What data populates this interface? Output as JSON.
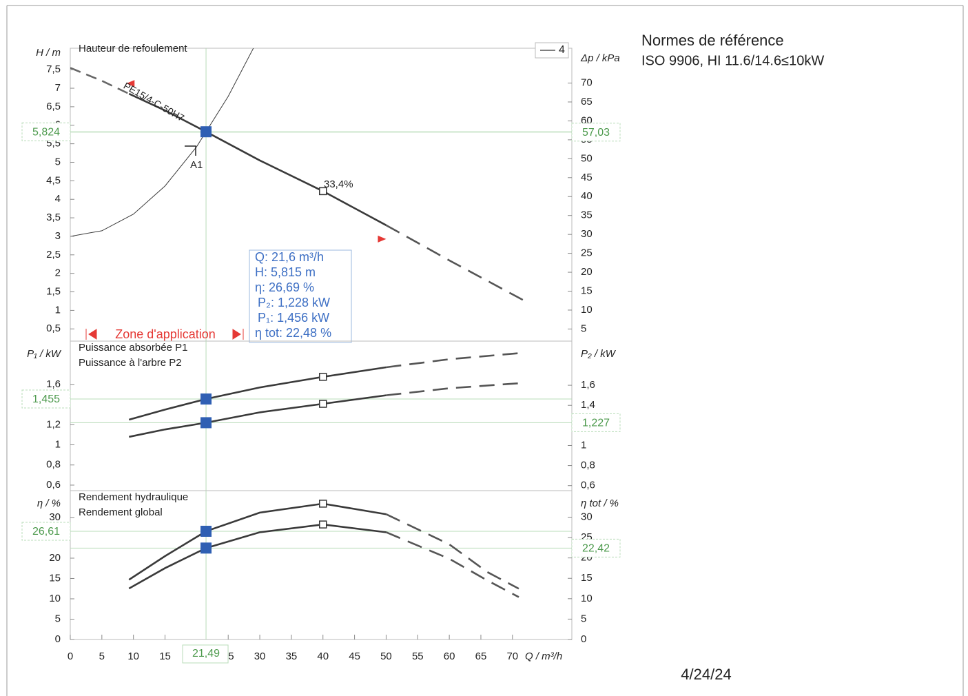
{
  "header": {
    "title": "Normes de référence",
    "subtitle": "ISO 9906, HI 11.6/14.6≤10kW"
  },
  "date": "4/24/24",
  "chart_data": [
    {
      "type": "line",
      "title": "Hauteur de refoulement",
      "ylabel": "H / m",
      "y2label": "Δp / kPa",
      "xlim": [
        0,
        79.4
      ],
      "ylim": [
        0.17,
        8.08
      ],
      "y2lim": [
        1.8,
        79.2
      ],
      "yticks": [
        {
          "value": 0.5,
          "label": "0,5"
        },
        1,
        {
          "value": 1.5,
          "label": "1,5"
        },
        2,
        {
          "value": 2.5,
          "label": "2,5"
        },
        3,
        {
          "value": 3.5,
          "label": "3,5"
        },
        4,
        {
          "value": 4.5,
          "label": "4,5"
        },
        5,
        {
          "value": 5.5,
          "label": "5,5"
        },
        6,
        {
          "value": 6.5,
          "label": "6,5"
        },
        7,
        {
          "value": 7.5,
          "label": "7,5"
        }
      ],
      "y2ticks": [
        5,
        10,
        15,
        20,
        25,
        30,
        35,
        40,
        45,
        50,
        55,
        60,
        65,
        70
      ],
      "application_zone": [
        9.3,
        50
      ],
      "zone_label": "Zone d'application",
      "bep_x": 40,
      "bep_label": "33,4%",
      "annotation": "A1",
      "legend_label": "4",
      "series": [
        {
          "name": "PE15/4-C-50H7",
          "color": "#3a3a3a",
          "x": [
            0,
            5,
            9.3,
            15,
            21.49,
            30,
            40,
            50,
            60,
            72
          ],
          "values": [
            7.55,
            7.2,
            6.85,
            6.4,
            5.824,
            5.05,
            4.22,
            3.3,
            2.35,
            1.25
          ]
        },
        {
          "color": "#3a3a3a",
          "width": 1,
          "x": [
            0,
            5,
            10,
            15,
            20,
            25,
            29.2
          ],
          "values": [
            3,
            3.15,
            3.6,
            4.36,
            5.42,
            6.78,
            8.15
          ]
        }
      ],
      "readouts": [
        {
          "axis": "y",
          "value": 5.824,
          "label": "5,824",
          "marker": true
        },
        {
          "axis": "y2",
          "value": 57.03,
          "label": "57,03"
        }
      ],
      "info_box": [
        "Q: 21,6 m³/h",
        "H: 5,815 m",
        "η: 26,69 %",
        "P₂: 1,228 kW",
        "P₁: 1,456 kW",
        "η tot: 22,48 %"
      ]
    },
    {
      "type": "line",
      "ylabel": "P₁ / kW",
      "y2label": "P₂ / kW",
      "xlim": [
        0,
        79.4
      ],
      "ylim": [
        0.545,
        2.03
      ],
      "y2lim": [
        0.55,
        2.04
      ],
      "yticks": [
        {
          "value": 0.6,
          "label": "0,6"
        },
        {
          "value": 0.8,
          "label": "0,8"
        },
        1,
        {
          "value": 1.2,
          "label": "1,2"
        },
        {
          "value": 1.6,
          "label": "1,6"
        }
      ],
      "y2ticks": [
        {
          "value": 0.6,
          "label": "0,6"
        },
        {
          "value": 0.8,
          "label": "0,8"
        },
        1,
        {
          "value": 1.4,
          "label": "1,4"
        },
        {
          "value": 1.6,
          "label": "1,6"
        }
      ],
      "series": [
        {
          "name": "Puissance absorbée P1",
          "color": "#3a3a3a",
          "x": [
            9.3,
            15,
            21.49,
            30,
            40,
            50,
            60,
            71
          ],
          "values": [
            1.25,
            1.35,
            1.455,
            1.57,
            1.675,
            1.77,
            1.85,
            1.91
          ]
        },
        {
          "name": "Puissance à l'arbre P2",
          "color": "#3a3a3a",
          "axis": "y2",
          "x": [
            9.3,
            15,
            21.49,
            30,
            40,
            50,
            60,
            71
          ],
          "values": [
            1.086,
            1.16,
            1.227,
            1.33,
            1.415,
            1.5,
            1.57,
            1.62
          ]
        }
      ],
      "readouts": [
        {
          "axis": "y",
          "value": 1.455,
          "label": "1,455",
          "marker": true
        },
        {
          "axis": "y2",
          "value": 1.227,
          "label": "1,227",
          "marker": true
        }
      ]
    },
    {
      "type": "line",
      "ylabel": "η / %",
      "y2label": "η tot / %",
      "xlabel": "Q / m³/h",
      "xlim": [
        0,
        79.4
      ],
      "ylim": [
        0,
        36.6
      ],
      "y2lim": [
        0,
        36.5
      ],
      "yticks": [
        0,
        5,
        10,
        15,
        20,
        30
      ],
      "y2ticks": [
        0,
        5,
        10,
        15,
        20,
        25,
        30
      ],
      "xticks": [
        0,
        5,
        10,
        15,
        25,
        30,
        35,
        40,
        45,
        50,
        55,
        60,
        65,
        70
      ],
      "x_readout": {
        "value": 21.49,
        "label": "21,49"
      },
      "series": [
        {
          "name": "Rendement hydraulique",
          "color": "#3a3a3a",
          "x": [
            9.3,
            15,
            21.49,
            30,
            40,
            50,
            60,
            66,
            71
          ],
          "values": [
            14.7,
            20.5,
            26.61,
            31.2,
            33.4,
            30.8,
            23.4,
            16.6,
            12.5
          ]
        },
        {
          "name": "Rendement global",
          "color": "#3a3a3a",
          "axis": "y2",
          "x": [
            9.3,
            15,
            21.49,
            30,
            40,
            50,
            60,
            66,
            71
          ],
          "values": [
            12.5,
            17.5,
            22.42,
            26.3,
            28.2,
            26.3,
            19.8,
            14.5,
            10.4
          ]
        }
      ],
      "readouts": [
        {
          "axis": "y",
          "value": 26.61,
          "label": "26,61",
          "marker": true
        },
        {
          "axis": "y2",
          "value": 22.42,
          "label": "22,42",
          "marker": true
        }
      ]
    }
  ]
}
